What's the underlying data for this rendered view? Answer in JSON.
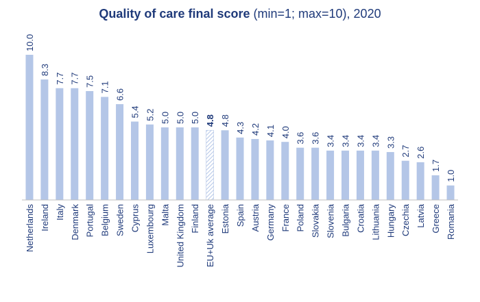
{
  "title": {
    "main": "Quality of care final score",
    "sub": " (min=1; max=10), 2020"
  },
  "colors": {
    "bar": "#b4c6e7",
    "text": "#1f3a7a",
    "axis": "#bfbfbf"
  },
  "chart_data": {
    "type": "bar",
    "title": "Quality of care final score (min=1; max=10), 2020",
    "xlabel": "",
    "ylabel": "",
    "ylim": [
      0,
      10
    ],
    "grid": false,
    "categories": [
      "Netherlands",
      "Ireland",
      "Italy",
      "Denmark",
      "Portugal",
      "Belgium",
      "Sweden",
      "Cyprus",
      "Luxembourg",
      "Malta",
      "United Kingdom",
      "Finland",
      "EU+Uk average",
      "Estonia",
      "Spain",
      "Austria",
      "Germany",
      "France",
      "Poland",
      "Slovakia",
      "Slovenia",
      "Bulgaria",
      "Croatia",
      "Lithuania",
      "Hungary",
      "Czechia",
      "Latvia",
      "Greece",
      "Romania"
    ],
    "value_labels": [
      "10.0",
      "8.3",
      "7.7",
      "7.7",
      "7.5",
      "7.1",
      "6.6",
      "5.4",
      "5.2",
      "5.0",
      "5.0",
      "5.0",
      "4.8",
      "4.8",
      "4.3",
      "4.2",
      "4.1",
      "4.0",
      "3.6",
      "3.6",
      "3.4",
      "3.4",
      "3.4",
      "3.4",
      "3.3",
      "2.7",
      "2.6",
      "1.7",
      "1.0"
    ],
    "values": [
      10.0,
      8.3,
      7.7,
      7.7,
      7.5,
      7.1,
      6.6,
      5.4,
      5.2,
      5.0,
      5.0,
      5.0,
      4.8,
      4.8,
      4.3,
      4.2,
      4.1,
      4.0,
      3.6,
      3.6,
      3.4,
      3.4,
      3.4,
      3.4,
      3.3,
      2.7,
      2.6,
      1.7,
      1.0
    ],
    "highlight": "EU+Uk average"
  }
}
